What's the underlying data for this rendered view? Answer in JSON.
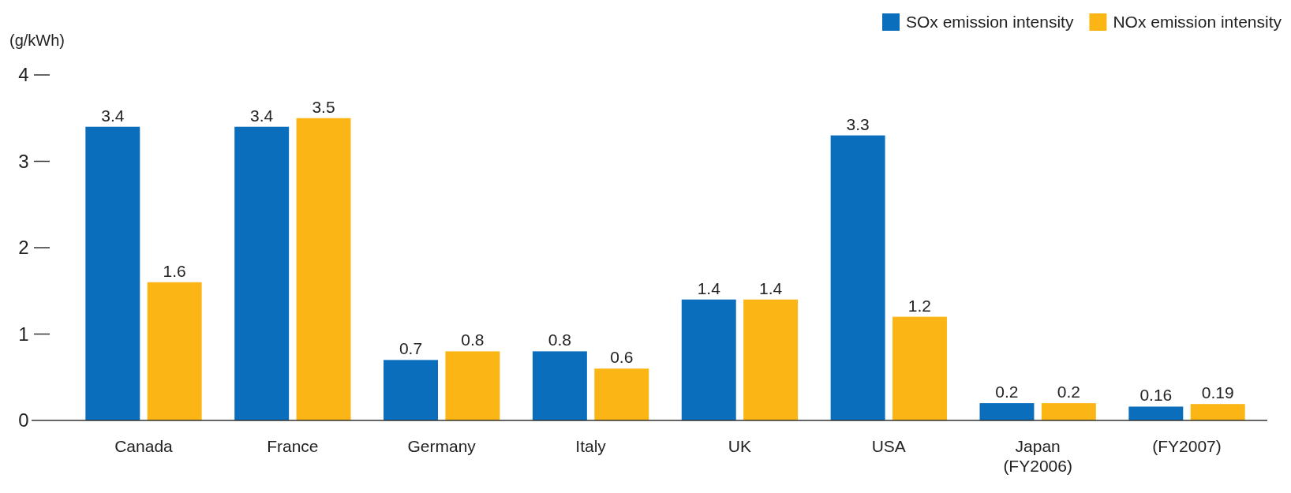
{
  "chart_data": {
    "type": "bar",
    "ylabel": "(g/kWh)",
    "categories": [
      "Canada",
      "France",
      "Germany",
      "Italy",
      "UK",
      "USA",
      "Japan\n(FY2006)",
      "(FY2007)"
    ],
    "series": [
      {
        "name": "SOx emission intensity",
        "color": "#0a6ebd",
        "values": [
          3.4,
          3.4,
          0.7,
          0.8,
          1.4,
          3.3,
          0.2,
          0.16
        ]
      },
      {
        "name": "NOx emission intensity",
        "color": "#fbb615",
        "values": [
          1.6,
          3.5,
          0.8,
          0.6,
          1.4,
          1.2,
          0.2,
          0.19
        ]
      }
    ],
    "ylim": [
      0,
      4
    ],
    "yticks": [
      0,
      1,
      2,
      3,
      4
    ],
    "data_labels": true,
    "legend": "top right",
    "grid": false
  }
}
